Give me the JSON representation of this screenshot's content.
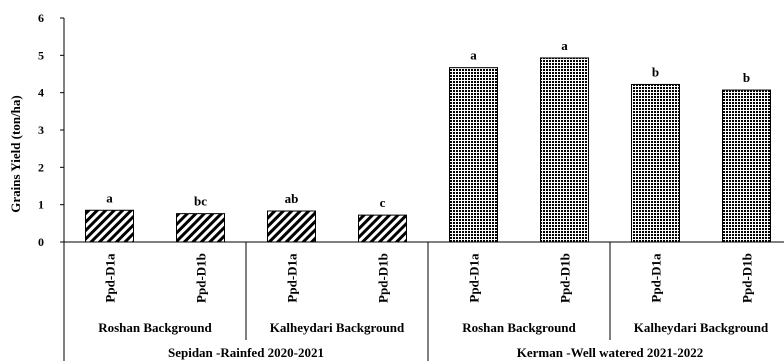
{
  "chart_data": {
    "type": "bar",
    "ylabel": "Grains Yield (ton/ha)",
    "ylim": [
      0,
      6
    ],
    "yticks": [
      0,
      1,
      2,
      3,
      4,
      5,
      6
    ],
    "grid": false,
    "categories": [
      "Ppd-D1a",
      "Ppd-D1b",
      "Ppd-D1a",
      "Ppd-D1b",
      "Ppd-D1a",
      "Ppd-D1b",
      "Ppd-D1a",
      "Ppd-D1b"
    ],
    "values": [
      0.85,
      0.76,
      0.83,
      0.72,
      4.67,
      4.93,
      4.22,
      4.07
    ],
    "significance_letters": [
      "a",
      "bc",
      "ab",
      "c",
      "a",
      "a",
      "b",
      "b"
    ],
    "backgrounds": [
      "Roshan Background",
      "Kalheydari Background",
      "Roshan Background",
      "Kalheydari Background"
    ],
    "environments": [
      "Sepidan -Rainfed 2020-2021",
      "Kerman -Well watered 2021-2022"
    ],
    "bar_fill": {
      "Sepidan -Rainfed 2020-2021": "diagonal-stripes",
      "Kerman -Well watered 2021-2022": "crosshatch"
    }
  }
}
